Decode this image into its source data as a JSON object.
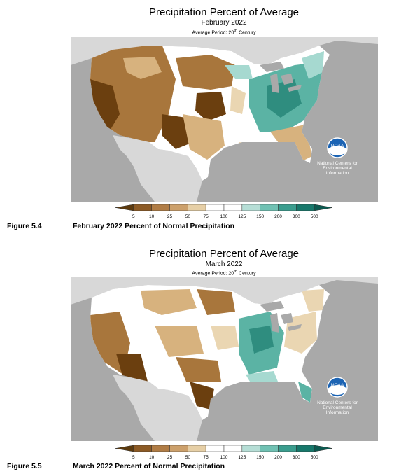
{
  "maps": [
    {
      "title": "Precipitation Percent of Average",
      "subtitle": "February 2022",
      "period_prefix": "Average Period: 20",
      "period_sup": "th",
      "period_suffix": " Century",
      "agency_lines": [
        "National Centers for",
        "Environmental",
        "Information"
      ],
      "logo_text": "NOAA",
      "figure_label": "Figure 5.4",
      "figure_caption": "February 2022 Percent of Normal Precipitation"
    },
    {
      "title": "Precipitation Percent of Average",
      "subtitle": "March 2022",
      "period_prefix": "Average Period: 20",
      "period_sup": "th",
      "period_suffix": " Century",
      "agency_lines": [
        "National Centers for",
        "Environmental",
        "Information"
      ],
      "logo_text": "NOAA",
      "figure_label": "Figure 5.5",
      "figure_caption": "March 2022 Percent of Normal Precipitation"
    }
  ],
  "legend": {
    "ticks": [
      "5",
      "10",
      "25",
      "50",
      "75",
      "100",
      "125",
      "150",
      "200",
      "300",
      "500"
    ],
    "colors": [
      "#5c3a0e",
      "#8c5a25",
      "#b07c45",
      "#cca06b",
      "#e6cfa6",
      "#ffffff",
      "#ffffff",
      "#b6ded6",
      "#70c1b3",
      "#3a9d8e",
      "#17786b",
      "#0c5a50"
    ]
  },
  "colors": {
    "ocean": "#a9a9a9",
    "land_outside": "#d8d8d8",
    "lake": "#a9a9a9",
    "dry_dark": "#6b3f0f",
    "dry_mid": "#a8763c",
    "dry_light": "#d7b27e",
    "dry_pale": "#ead6b2",
    "normal": "#ffffff",
    "wet_light": "#a6d9d0",
    "wet_mid": "#5bb3a4",
    "wet_dark": "#2f8d7f",
    "noaa_blue": "#1c64b4"
  }
}
